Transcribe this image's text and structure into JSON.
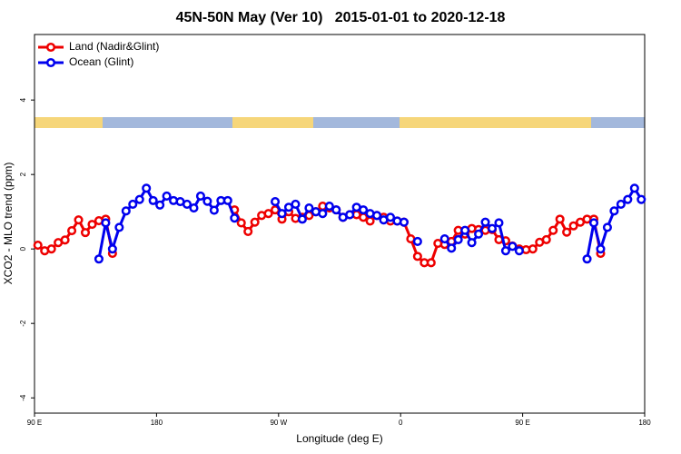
{
  "chart_data": {
    "type": "line",
    "title": "45N-50N May (Ver 10)   2015-01-01 to 2020-12-18",
    "x_label": "Longitude (deg E)",
    "y_label": "XCO2 - MLO trend (ppm)",
    "xlim": [
      90,
      540
    ],
    "xticks": [
      {
        "value": 90,
        "label": "90 E"
      },
      {
        "value": 180,
        "label": "180"
      },
      {
        "value": 270,
        "label": "90 W"
      },
      {
        "value": 360,
        "label": "0"
      },
      {
        "value": 450,
        "label": "90 E"
      },
      {
        "value": 540,
        "label": "180"
      }
    ],
    "ylim": [
      -4.41,
      5.76
    ],
    "yticks": [
      -4,
      -2,
      0,
      2,
      4
    ],
    "legend": "top-left",
    "x": [
      92.5,
      97.5,
      102.5,
      107.5,
      112.5,
      117.5,
      122.5,
      127.5,
      132.5,
      137.5,
      142.5,
      147.5,
      152.5,
      157.5,
      162.5,
      167.5,
      172.5,
      177.5,
      182.5,
      187.5,
      192.5,
      197.5,
      202.5,
      207.5,
      212.5,
      217.5,
      222.5,
      227.5,
      232.5,
      237.5,
      242.5,
      247.5,
      252.5,
      257.5,
      262.5,
      267.5,
      272.5,
      277.5,
      282.5,
      287.5,
      292.5,
      297.5,
      302.5,
      307.5,
      312.5,
      317.5,
      322.5,
      327.5,
      332.5,
      337.5,
      342.5,
      347.5,
      352.5,
      357.5,
      362.5,
      367.5,
      372.5,
      377.5,
      382.5,
      387.5,
      392.5,
      397.5,
      402.5,
      407.5,
      412.5,
      417.5,
      422.5,
      427.5,
      432.5,
      437.5,
      442.5,
      447.5,
      452.5,
      457.5,
      462.5,
      467.5,
      472.5,
      477.5,
      482.5,
      487.5,
      492.5,
      497.5,
      502.5,
      507.5,
      512.5,
      517.5,
      522.5,
      527.5,
      532.5,
      537.5
    ],
    "series": [
      {
        "name": "Land (Nadir&Glint)",
        "color": "#ee0000",
        "values": [
          0.1,
          -0.05,
          0.0,
          0.17,
          0.24,
          0.49,
          0.78,
          0.44,
          0.66,
          0.76,
          0.8,
          -0.12,
          null,
          null,
          null,
          null,
          null,
          null,
          null,
          null,
          null,
          null,
          null,
          null,
          null,
          null,
          null,
          null,
          null,
          1.05,
          0.7,
          0.47,
          0.72,
          0.9,
          0.95,
          1.05,
          0.8,
          1.0,
          0.82,
          0.85,
          0.9,
          1.0,
          1.15,
          1.1,
          1.05,
          0.85,
          0.92,
          0.92,
          0.85,
          0.75,
          0.9,
          0.85,
          0.75,
          0.75,
          0.72,
          0.27,
          -0.2,
          -0.37,
          -0.37,
          0.15,
          0.12,
          0.2,
          0.5,
          0.4,
          0.55,
          0.52,
          0.5,
          0.52,
          0.25,
          0.22,
          0.08,
          0.0,
          -0.02,
          0.0,
          0.18,
          0.25,
          0.5,
          0.8,
          0.45,
          0.62,
          0.72,
          0.8,
          0.8,
          -0.12,
          null,
          null,
          null,
          null,
          null,
          null
        ]
      },
      {
        "name": "Ocean (Glint)",
        "color": "#0000ee",
        "values": [
          null,
          null,
          null,
          null,
          null,
          null,
          null,
          null,
          null,
          -0.27,
          0.7,
          0.0,
          0.58,
          1.02,
          1.2,
          1.33,
          1.63,
          1.3,
          1.18,
          1.42,
          1.3,
          1.27,
          1.2,
          1.1,
          1.42,
          1.28,
          1.04,
          1.3,
          1.3,
          0.83,
          null,
          null,
          null,
          null,
          null,
          1.27,
          0.95,
          1.12,
          1.2,
          0.8,
          1.1,
          1.0,
          0.95,
          1.15,
          1.05,
          0.85,
          0.92,
          1.12,
          1.05,
          0.95,
          0.9,
          0.78,
          0.85,
          0.75,
          0.72,
          null,
          0.2,
          null,
          null,
          null,
          0.27,
          0.02,
          0.25,
          0.5,
          0.17,
          0.4,
          0.72,
          0.55,
          0.7,
          -0.05,
          0.07,
          -0.05,
          null,
          null,
          null,
          null,
          null,
          null,
          null,
          null,
          null,
          -0.27,
          0.7,
          0.0,
          0.58,
          1.02,
          1.2,
          1.33,
          1.63,
          1.33
        ]
      }
    ]
  }
}
